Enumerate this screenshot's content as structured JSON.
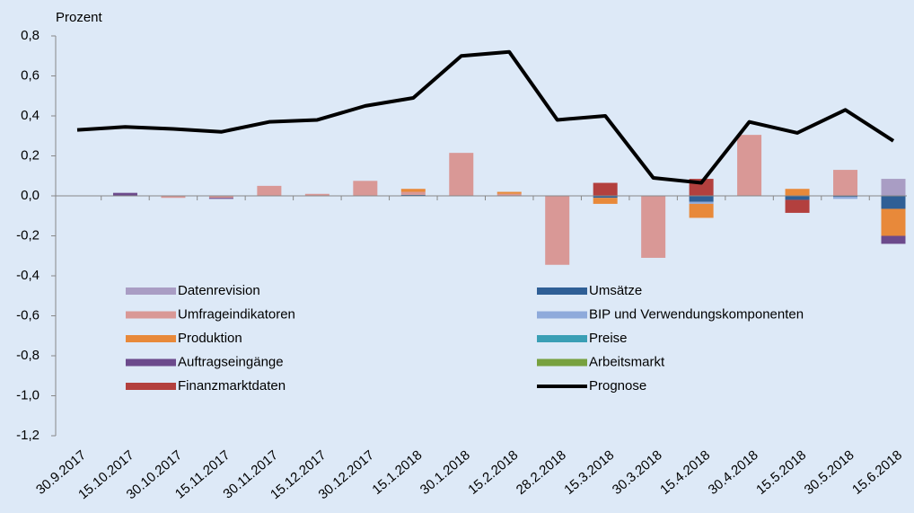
{
  "chart_data": {
    "type": "bar",
    "y_label": "Prozent",
    "categories": [
      "30.9.2017",
      "15.10.2017",
      "30.10.2017",
      "15.11.2017",
      "30.11.2017",
      "15.12.2017",
      "30.12.2017",
      "15.1.2018",
      "30.1.2018",
      "15.2.2018",
      "28.2.2018",
      "15.3.2018",
      "30.3.2018",
      "15.4.2018",
      "30.4.2018",
      "15.5.2018",
      "30.5.2018",
      "15.6.2018"
    ],
    "series": [
      {
        "name": "Datenrevision",
        "color": "#a99dc4",
        "values": [
          0,
          0,
          0,
          0,
          0,
          0,
          0,
          0,
          0,
          0,
          0,
          0,
          0,
          0,
          0,
          0,
          0,
          0.085
        ]
      },
      {
        "name": "Umsätze",
        "color": "#2f5f96",
        "values": [
          0,
          0,
          0,
          0,
          0,
          0,
          0,
          0.005,
          0,
          0,
          0,
          -0.01,
          0,
          -0.03,
          0,
          -0.02,
          -0.005,
          -0.065
        ]
      },
      {
        "name": "Umfrageindikatoren",
        "color": "#d99896",
        "values": [
          0,
          0,
          -0.01,
          -0.01,
          0.05,
          0.01,
          0.075,
          0.015,
          0.215,
          0.01,
          -0.345,
          0,
          -0.31,
          0,
          0.305,
          0,
          0.13,
          0
        ]
      },
      {
        "name": "BIP und Verwendungskomponenten",
        "color": "#8eaadb",
        "values": [
          0,
          0,
          0,
          0,
          0,
          0,
          0,
          0,
          0,
          0,
          0,
          0,
          0,
          -0.01,
          0,
          0,
          -0.01,
          0
        ]
      },
      {
        "name": "Produktion",
        "color": "#e8893a",
        "values": [
          0,
          0,
          0,
          0,
          0,
          0,
          0,
          0.015,
          0,
          0.01,
          0,
          -0.03,
          0,
          -0.07,
          0,
          0.035,
          0,
          -0.135
        ]
      },
      {
        "name": "Preise",
        "color": "#3a9fb5",
        "values": [
          0,
          0,
          0,
          0,
          0,
          0,
          0,
          0,
          0,
          0,
          0,
          0,
          0,
          0,
          0,
          0,
          0,
          0
        ]
      },
      {
        "name": "Auftragseingänge",
        "color": "#6c4a8c",
        "values": [
          0,
          0.015,
          0,
          -0.005,
          0,
          0,
          0,
          0,
          0,
          0,
          0,
          0,
          0,
          0,
          0,
          0,
          0,
          -0.04
        ]
      },
      {
        "name": "Arbeitsmarkt",
        "color": "#77a13f",
        "values": [
          0,
          0,
          0,
          0,
          0,
          0,
          0,
          0,
          0,
          0,
          0,
          0,
          0,
          0,
          0,
          0,
          0,
          0
        ]
      },
      {
        "name": "Finanzmarktdaten",
        "color": "#b3403e",
        "values": [
          0,
          0,
          0,
          0,
          0,
          0,
          0,
          0,
          0,
          0,
          0,
          0.065,
          0,
          0.085,
          0,
          -0.065,
          0,
          0
        ]
      }
    ],
    "line": {
      "name": "Prognose",
      "color": "#000000",
      "values": [
        0.33,
        0.345,
        0.335,
        0.32,
        0.37,
        0.38,
        0.45,
        0.49,
        0.7,
        0.72,
        0.38,
        0.4,
        0.09,
        0.065,
        0.37,
        0.315,
        0.43,
        0.275
      ]
    },
    "ylim": [
      -1.2,
      0.8
    ],
    "yticks": [
      {
        "value": 0.8,
        "label": "0,8"
      },
      {
        "value": 0.6,
        "label": "0,6"
      },
      {
        "value": 0.4,
        "label": "0,4"
      },
      {
        "value": 0.2,
        "label": "0,2"
      },
      {
        "value": 0,
        "label": "0,0"
      },
      {
        "value": -0.2,
        "label": "-0,2"
      },
      {
        "value": -0.4,
        "label": "-0,4"
      },
      {
        "value": -0.6,
        "label": "-0,6"
      },
      {
        "value": -0.8,
        "label": "-0,8"
      },
      {
        "value": -1,
        "label": "-1,0"
      },
      {
        "value": -1.2,
        "label": "-1,2"
      }
    ]
  }
}
